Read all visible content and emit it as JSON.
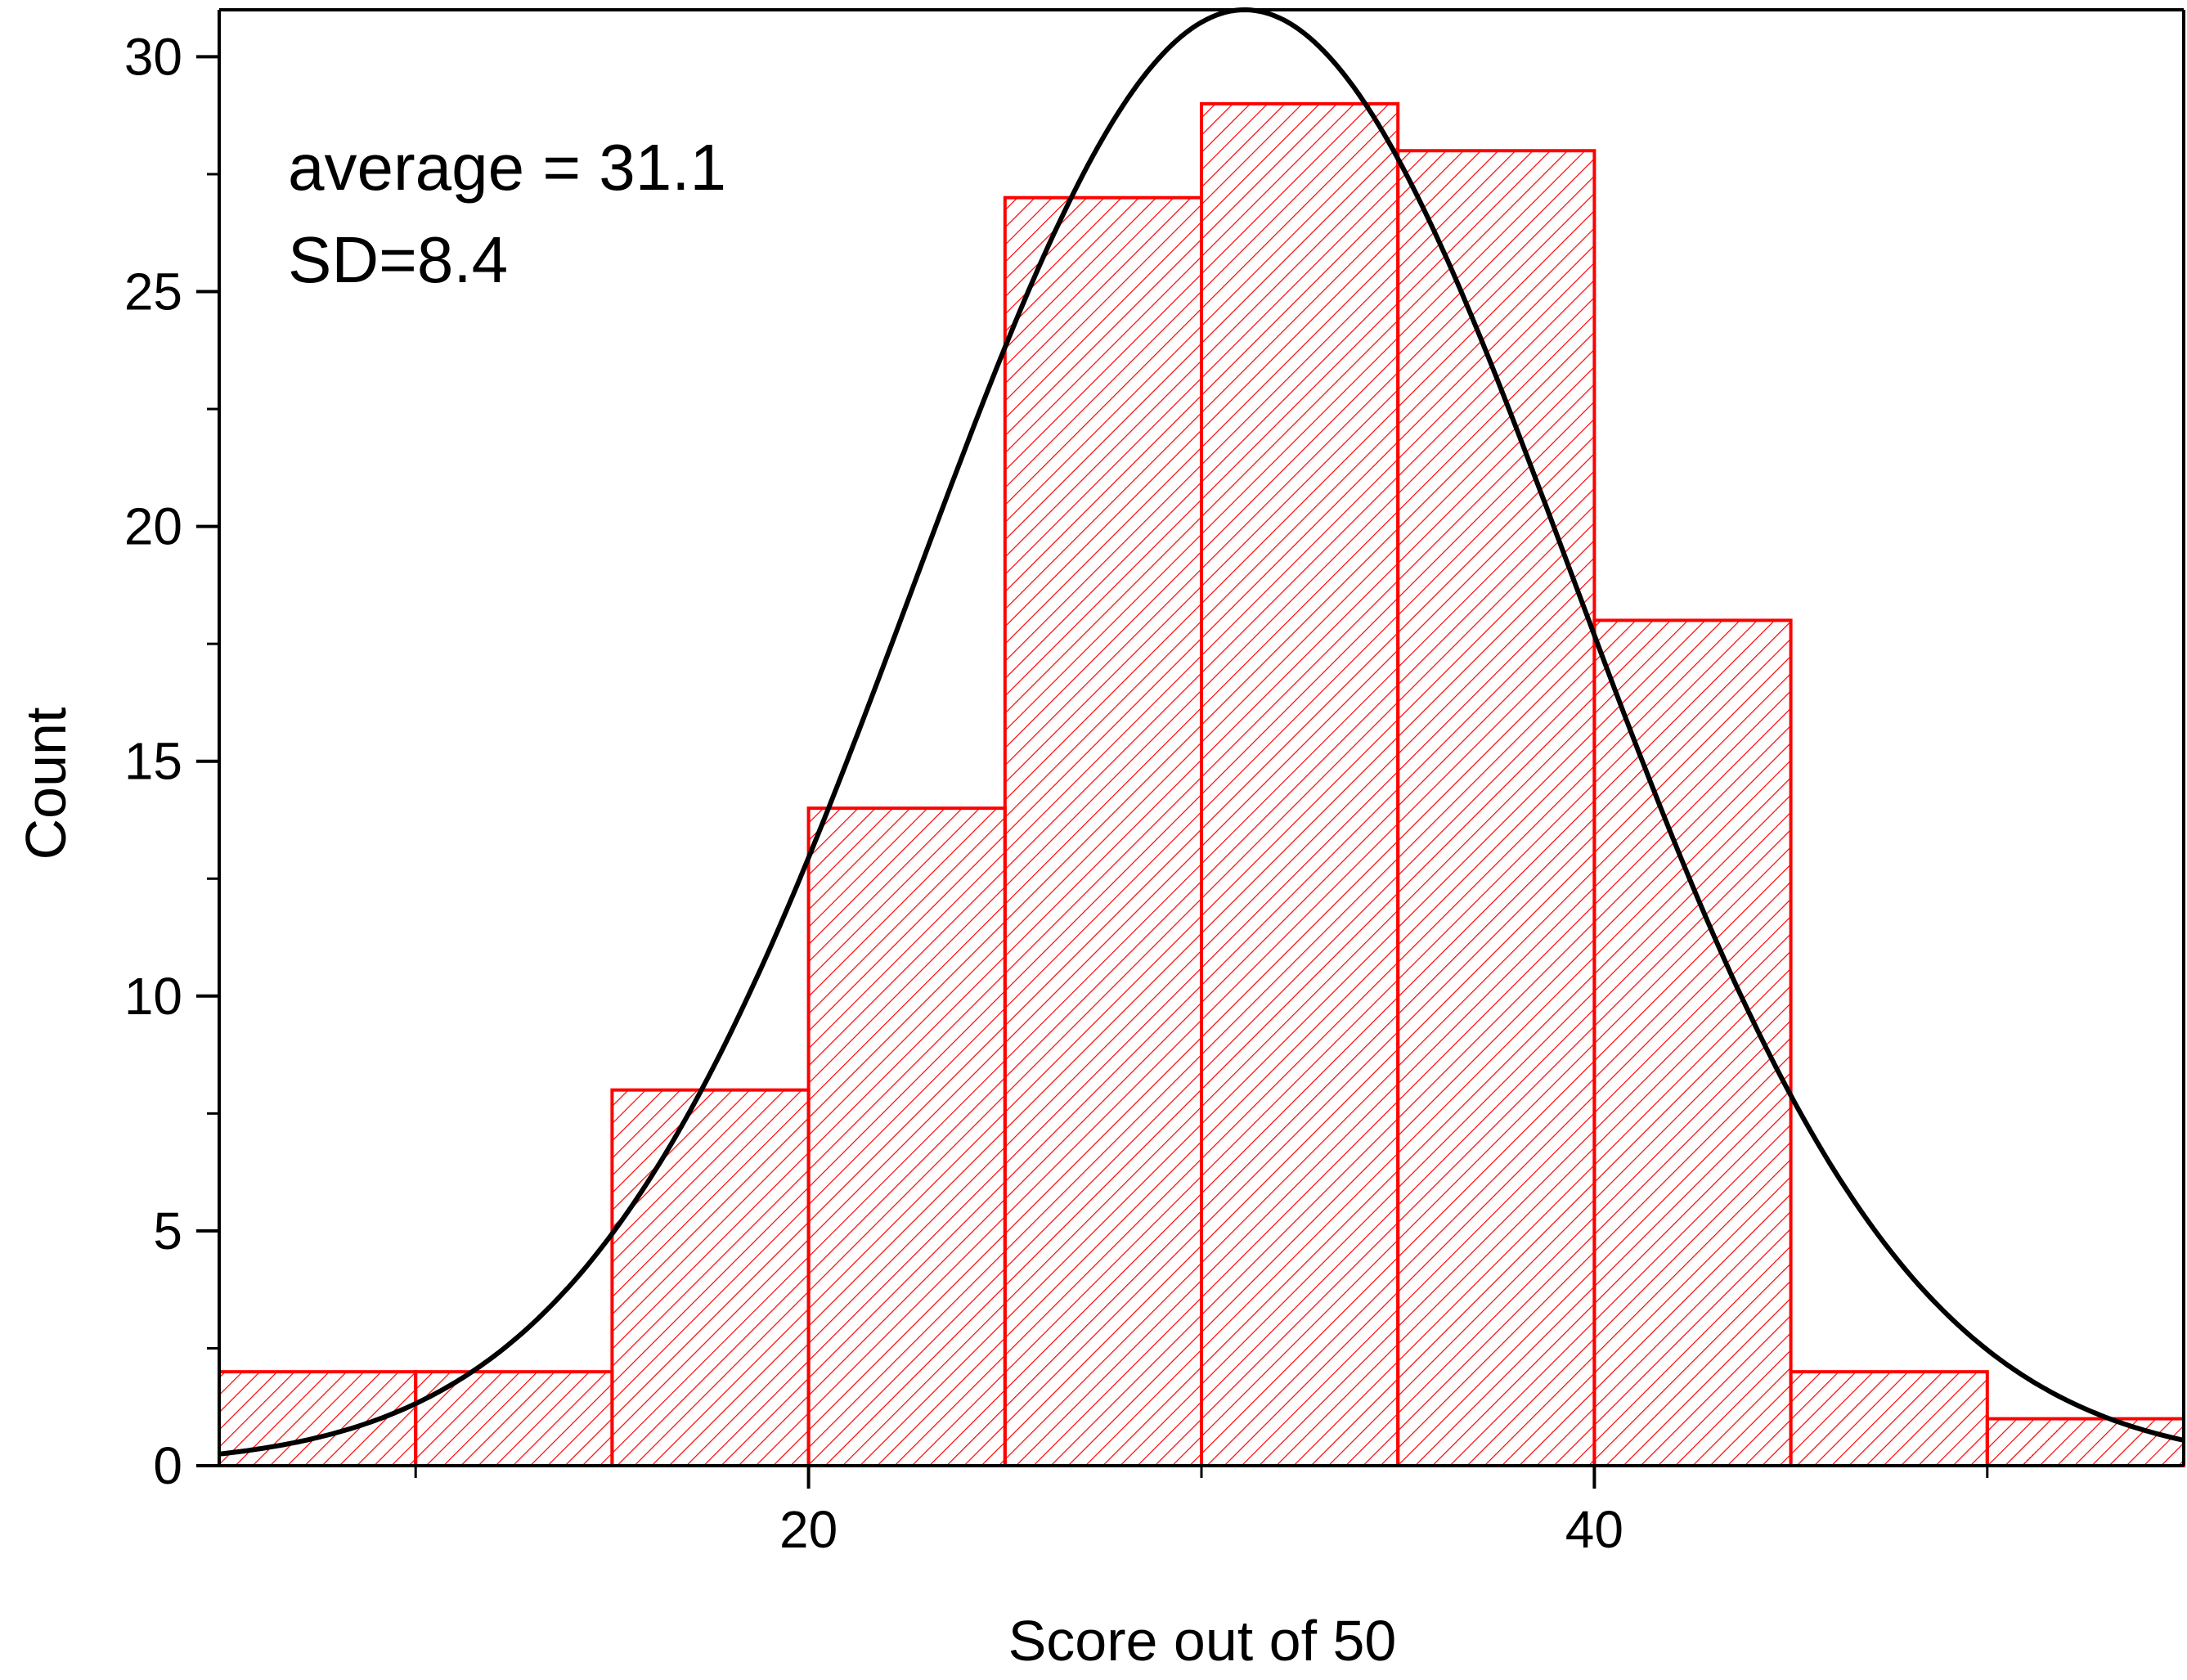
{
  "chart_data": {
    "type": "bar",
    "subtype": "histogram",
    "title": "",
    "xlabel": "Score out of 50",
    "ylabel": "Count",
    "xlim": [
      5,
      55
    ],
    "ylim": [
      0,
      31
    ],
    "bins": [
      {
        "start": 5,
        "end": 10,
        "count": 2
      },
      {
        "start": 10,
        "end": 15,
        "count": 2
      },
      {
        "start": 15,
        "end": 20,
        "count": 8
      },
      {
        "start": 20,
        "end": 25,
        "count": 14
      },
      {
        "start": 25,
        "end": 30,
        "count": 27
      },
      {
        "start": 30,
        "end": 35,
        "count": 29
      },
      {
        "start": 35,
        "end": 40,
        "count": 28
      },
      {
        "start": 40,
        "end": 45,
        "count": 18
      },
      {
        "start": 45,
        "end": 50,
        "count": 2
      },
      {
        "start": 50,
        "end": 55,
        "count": 1
      }
    ],
    "fit_curve": {
      "type": "normal",
      "mean": 31.1,
      "sd": 8.4,
      "peak": 31
    },
    "x_ticks": [
      {
        "value": 20,
        "label": "20"
      },
      {
        "value": 40,
        "label": "40"
      }
    ],
    "x_minor_ticks": [
      10,
      30,
      50
    ],
    "y_ticks": [
      {
        "value": 0,
        "label": "0"
      },
      {
        "value": 5,
        "label": "5"
      },
      {
        "value": 10,
        "label": "10"
      },
      {
        "value": 15,
        "label": "15"
      },
      {
        "value": 20,
        "label": "20"
      },
      {
        "value": 25,
        "label": "25"
      },
      {
        "value": 30,
        "label": "30"
      }
    ],
    "y_minor_ticks": [
      2.5,
      7.5,
      12.5,
      17.5,
      22.5,
      27.5
    ],
    "annotations": {
      "average": "average = 31.1",
      "sd": "SD=8.4"
    },
    "grid": false,
    "colors": {
      "bar_stroke": "#ff0000",
      "bar_hatch": "#ff0000",
      "curve": "#000000",
      "axis": "#000000"
    }
  }
}
